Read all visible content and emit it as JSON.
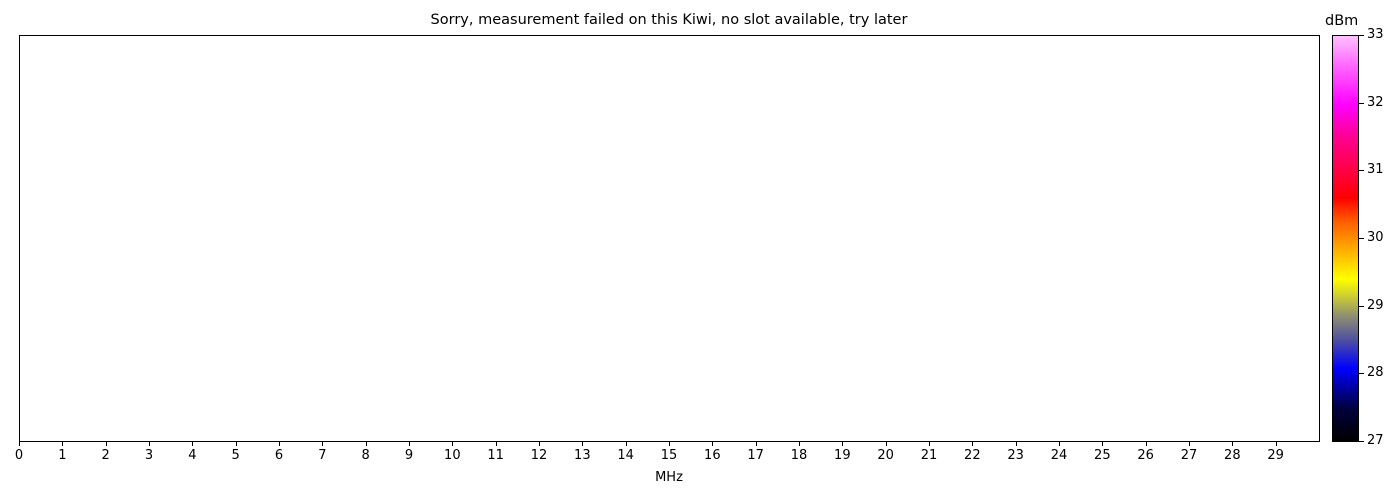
{
  "chart_data": {
    "type": "heatmap",
    "title": "Sorry, measurement failed on this Kiwi, no slot available, try later",
    "xlabel": "MHz",
    "ylabel": "",
    "xlim": [
      0,
      30
    ],
    "x_ticks": [
      0,
      1,
      2,
      3,
      4,
      5,
      6,
      7,
      8,
      9,
      10,
      11,
      12,
      13,
      14,
      15,
      16,
      17,
      18,
      19,
      20,
      21,
      22,
      23,
      24,
      25,
      26,
      27,
      28,
      29
    ],
    "values": [],
    "colorbar": {
      "label": "dBm",
      "range": [
        27,
        33
      ],
      "ticks": [
        27,
        28,
        29,
        30,
        31,
        32,
        33
      ],
      "colors": [
        "#000000",
        "#0000ff",
        "#909070",
        "#ffff00",
        "#ff6000",
        "#ff0000",
        "#ff00ff",
        "#ffc0ff"
      ]
    }
  }
}
